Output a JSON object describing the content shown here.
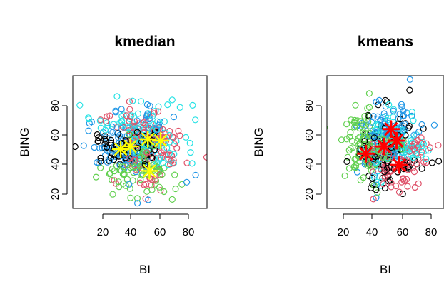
{
  "chart_data": [
    {
      "type": "scatter",
      "title": "kmedian",
      "xlabel": "BI",
      "ylabel": "BING",
      "xticks": [
        "20",
        "40",
        "60",
        "80"
      ],
      "yticks": [
        "20",
        "40",
        "60",
        "80"
      ],
      "xlim": [
        8,
        92
      ],
      "ylim": [
        10,
        102
      ],
      "grid": false,
      "cluster_colors": [
        "#000000",
        "#df536b",
        "#61d04f",
        "#2297e6",
        "#28e2e5"
      ],
      "centers": [
        {
          "x": 38,
          "y": 51,
          "color": "#ffff00"
        },
        {
          "x": 44,
          "y": 53,
          "color": "#ffff00"
        },
        {
          "x": 55,
          "y": 58,
          "color": "#ffff00"
        },
        {
          "x": 63,
          "y": 57,
          "color": "#ffff00"
        },
        {
          "x": 56,
          "y": 36,
          "color": "#ffff00"
        }
      ]
    },
    {
      "type": "scatter",
      "title": "kmeans",
      "xlabel": "BI",
      "ylabel": "BING",
      "xticks": [
        "20",
        "40",
        "60",
        "80"
      ],
      "yticks": [
        "20",
        "40",
        "60",
        "80"
      ],
      "xlim": [
        8,
        92
      ],
      "ylim": [
        10,
        102
      ],
      "grid": false,
      "cluster_colors": [
        "#000000",
        "#df536b",
        "#61d04f",
        "#2297e6",
        "#28e2e5"
      ],
      "centers": [
        {
          "x": 36,
          "y": 48,
          "color": "#ff0000"
        },
        {
          "x": 49,
          "y": 53,
          "color": "#ff0000"
        },
        {
          "x": 54,
          "y": 65,
          "color": "#ff0000"
        },
        {
          "x": 60,
          "y": 40,
          "color": "#ff0000"
        },
        {
          "x": 58,
          "y": 57,
          "color": "#ff0000"
        }
      ]
    }
  ]
}
